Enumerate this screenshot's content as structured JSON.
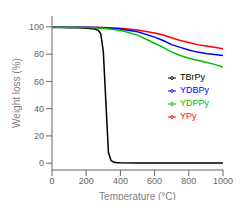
{
  "chart_data": {
    "type": "line",
    "xlabel": "Temperature (°C)",
    "ylabel": "Weight loss (%)",
    "xlim": [
      0,
      1000
    ],
    "ylim": [
      -5,
      108
    ],
    "xticks": [
      0,
      200,
      400,
      600,
      800,
      1000
    ],
    "yticks": [
      0,
      20,
      40,
      60,
      80,
      100
    ],
    "grid": false,
    "legend": "right",
    "series": [
      {
        "name": "TBrPy",
        "color": "#000000",
        "x": [
          0,
          50,
          100,
          150,
          200,
          250,
          270,
          285,
          300,
          315,
          330,
          345,
          360,
          380,
          400,
          500,
          600,
          700,
          800,
          900,
          1000
        ],
        "values": [
          99.5,
          99.5,
          99.4,
          99.3,
          99.0,
          98.5,
          97.5,
          95.0,
          82.0,
          45.0,
          8.0,
          2.0,
          0.8,
          0.4,
          0.3,
          0.2,
          0.2,
          0.2,
          0.2,
          0.2,
          0.2
        ]
      },
      {
        "name": "YPy",
        "color": "#ff0000",
        "x": [
          0,
          100,
          200,
          300,
          400,
          500,
          600,
          650,
          700,
          750,
          800,
          850,
          900,
          950,
          1000
        ],
        "values": [
          99.8,
          99.8,
          99.7,
          99.5,
          99.0,
          97.8,
          95.5,
          94.0,
          92.0,
          90.0,
          88.5,
          87.0,
          86.0,
          85.0,
          84.0
        ]
      },
      {
        "name": "YDBPy",
        "color": "#0000ff",
        "x": [
          0,
          100,
          200,
          300,
          400,
          500,
          600,
          650,
          700,
          750,
          800,
          850,
          900,
          950,
          1000
        ],
        "values": [
          99.8,
          99.8,
          99.7,
          99.3,
          98.5,
          96.5,
          92.5,
          90.0,
          87.0,
          85.0,
          83.0,
          81.5,
          80.5,
          79.8,
          79.0
        ]
      },
      {
        "name": "YDPPy",
        "color": "#00bb00",
        "x": [
          0,
          100,
          200,
          300,
          400,
          500,
          600,
          650,
          700,
          750,
          800,
          850,
          900,
          950,
          1000
        ],
        "values": [
          99.8,
          99.7,
          99.5,
          99.0,
          97.5,
          94.0,
          88.0,
          85.0,
          81.5,
          79.0,
          77.0,
          75.5,
          74.0,
          72.5,
          70.5
        ]
      }
    ]
  }
}
